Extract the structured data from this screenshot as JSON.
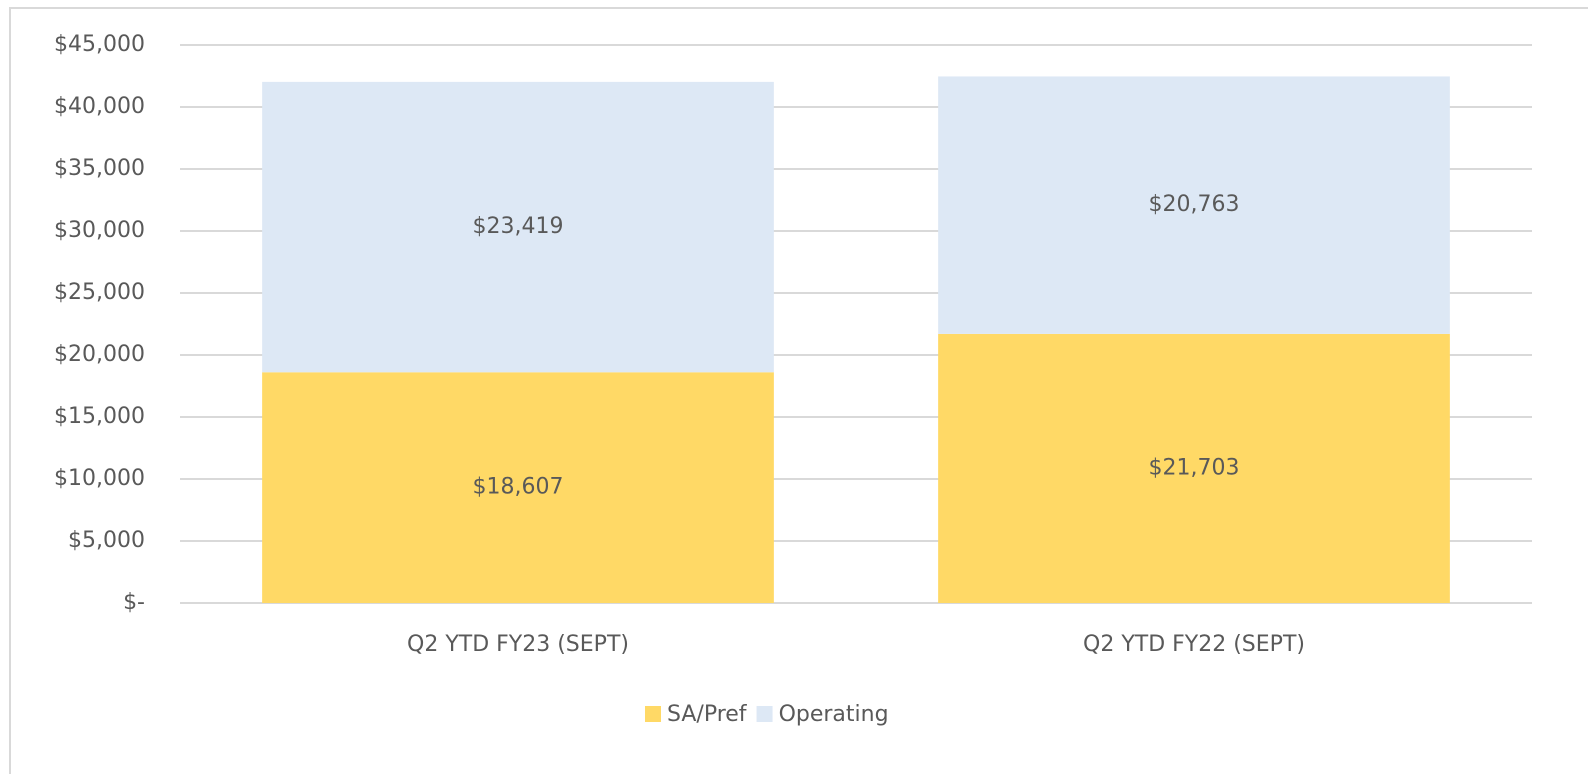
{
  "chart_data": {
    "type": "stacked_bar",
    "categories": [
      "Q2 YTD FY23 (SEPT)",
      "Q2 YTD FY22 (SEPT)"
    ],
    "series": [
      {
        "name": "SA/Pref",
        "color": "#ffd966",
        "values": [
          18607,
          21703
        ],
        "value_labels": [
          "$18,607",
          "$21,703"
        ]
      },
      {
        "name": "Operating",
        "color": "#dde8f5",
        "values": [
          23419,
          20763
        ],
        "value_labels": [
          "$23,419",
          "$20,763"
        ]
      }
    ],
    "ylim": [
      0,
      45000
    ],
    "yticks": [
      {
        "value": 0,
        "label": "$-"
      },
      {
        "value": 5000,
        "label": "$5,000"
      },
      {
        "value": 10000,
        "label": "$10,000"
      },
      {
        "value": 15000,
        "label": "$15,000"
      },
      {
        "value": 20000,
        "label": "$20,000"
      },
      {
        "value": 25000,
        "label": "$25,000"
      },
      {
        "value": 30000,
        "label": "$30,000"
      },
      {
        "value": 35000,
        "label": "$35,000"
      },
      {
        "value": 40000,
        "label": "$40,000"
      },
      {
        "value": 45000,
        "label": "$45,000"
      }
    ],
    "grid": true,
    "legend": "bottom"
  }
}
